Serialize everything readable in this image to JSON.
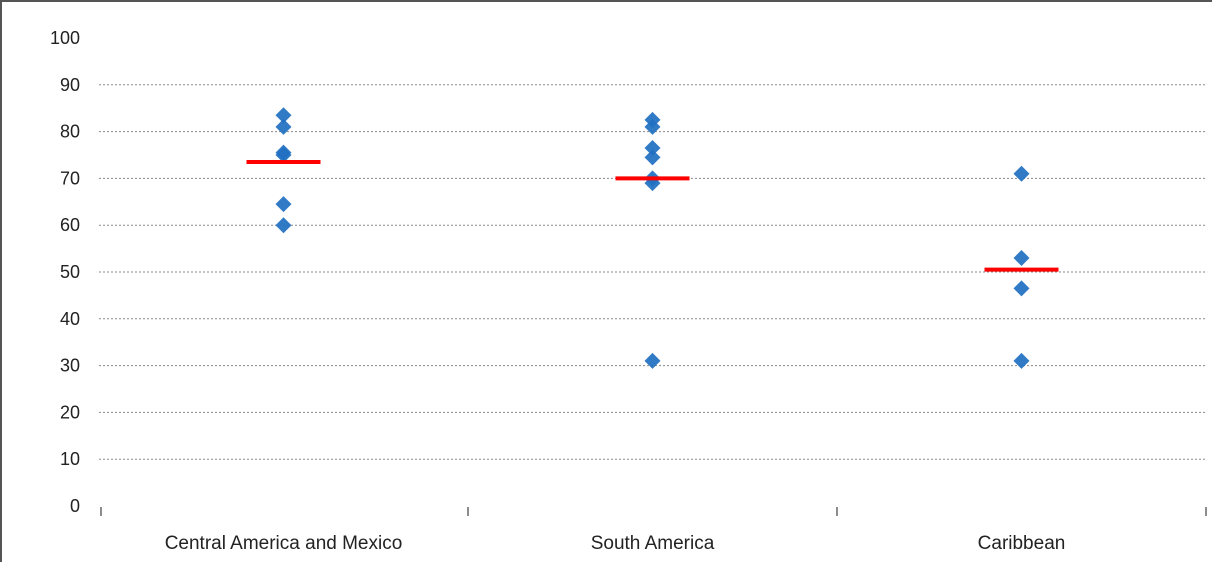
{
  "chart_data": {
    "type": "scatter",
    "title": "",
    "xlabel": "",
    "ylabel": "",
    "ylim": [
      0,
      100
    ],
    "yticks": [
      0,
      10,
      20,
      30,
      40,
      50,
      60,
      70,
      80,
      90,
      100
    ],
    "ytick_labels": [
      "0",
      "10",
      "20",
      "30",
      "40",
      "50",
      "60",
      "70",
      "80",
      "90",
      "100"
    ],
    "grid": "horizontal dotted",
    "legend": "none",
    "categories": [
      "Central America and Mexico",
      "South America",
      "Caribbean"
    ],
    "points": [
      [
        83.5,
        81,
        75.5,
        75,
        64.5,
        60
      ],
      [
        82.5,
        81,
        76.5,
        74.5,
        70,
        69,
        31
      ],
      [
        71,
        53,
        46.5,
        31
      ]
    ],
    "averages": [
      73.5,
      70,
      50.5
    ],
    "colors": {
      "point": "#1f6fc1",
      "average": "#ff0000",
      "grid": "#8a8a8a",
      "axis": "#666666"
    }
  }
}
